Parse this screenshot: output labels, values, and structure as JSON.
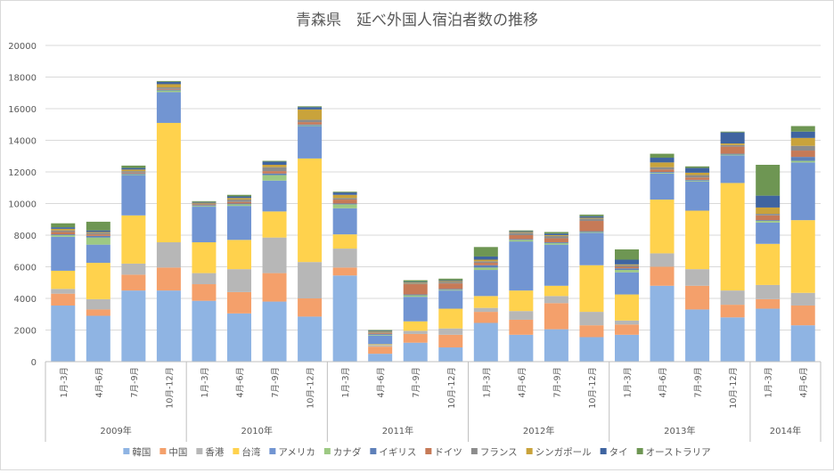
{
  "chart_data": {
    "type": "bar",
    "stacked": true,
    "title": "青森県　延べ外国人宿泊者数の推移",
    "ylim": [
      0,
      20000
    ],
    "yticks": [
      0,
      2000,
      4000,
      6000,
      8000,
      10000,
      12000,
      14000,
      16000,
      18000,
      20000
    ],
    "grid": true,
    "legend_position": "bottom",
    "categories": [
      "1月-3月",
      "4月-6月",
      "7月-9月",
      "10月-12月",
      "1月-3月",
      "4月-6月",
      "7月-9月",
      "10月-12月",
      "1月-3月",
      "4月-6月",
      "7月-9月",
      "10月-12月",
      "1月-3月",
      "4月-6月",
      "7月-9月",
      "10月-12月",
      "1月-3月",
      "4月-6月",
      "7月-9月",
      "10月-12月",
      "1月-3月",
      "4月-6月"
    ],
    "groups": [
      {
        "label": "2009年",
        "start": 0,
        "count": 4
      },
      {
        "label": "2010年",
        "start": 4,
        "count": 4
      },
      {
        "label": "2011年",
        "start": 8,
        "count": 4
      },
      {
        "label": "2012年",
        "start": 12,
        "count": 4
      },
      {
        "label": "2013年",
        "start": 16,
        "count": 4
      },
      {
        "label": "2014年",
        "start": 20,
        "count": 2
      }
    ],
    "series": [
      {
        "name": "韓国",
        "color": "#8FB4E3",
        "values": [
          3550,
          2900,
          4500,
          4500,
          3850,
          3050,
          3800,
          2850,
          5450,
          500,
          1200,
          900,
          2450,
          1700,
          2050,
          1550,
          1700,
          4800,
          3300,
          2800,
          3350,
          2300
        ]
      },
      {
        "name": "中国",
        "color": "#F4A06B",
        "values": [
          750,
          400,
          1000,
          1450,
          1050,
          1350,
          1800,
          1150,
          500,
          450,
          550,
          800,
          700,
          950,
          1650,
          750,
          650,
          1200,
          1500,
          800,
          600,
          1250
        ]
      },
      {
        "name": "香港",
        "color": "#B7B7B7",
        "values": [
          300,
          650,
          700,
          1600,
          700,
          1450,
          2250,
          2300,
          1200,
          100,
          200,
          400,
          250,
          550,
          450,
          850,
          250,
          850,
          1050,
          900,
          900,
          800
        ]
      },
      {
        "name": "台湾",
        "color": "#FFD24D",
        "values": [
          1150,
          2300,
          3050,
          7550,
          1950,
          1850,
          1650,
          6550,
          900,
          50,
          600,
          1250,
          750,
          1300,
          650,
          2950,
          1650,
          3400,
          3700,
          6800,
          2600,
          4600
        ]
      },
      {
        "name": "アメリカ",
        "color": "#7295D2",
        "values": [
          2150,
          1150,
          2550,
          1950,
          2250,
          2150,
          1950,
          2050,
          1650,
          550,
          1550,
          1150,
          1650,
          3100,
          2600,
          2050,
          1400,
          1650,
          1850,
          1750,
          1350,
          3650
        ]
      },
      {
        "name": "カナダ",
        "color": "#9DC983",
        "values": [
          100,
          450,
          50,
          100,
          50,
          100,
          350,
          50,
          250,
          50,
          100,
          50,
          150,
          100,
          100,
          50,
          150,
          50,
          50,
          50,
          100,
          100
        ]
      },
      {
        "name": "イギリス",
        "color": "#5E80B9",
        "values": [
          50,
          100,
          50,
          50,
          50,
          50,
          100,
          50,
          50,
          50,
          50,
          50,
          150,
          50,
          50,
          50,
          100,
          50,
          50,
          50,
          50,
          250
        ]
      },
      {
        "name": "ドイツ",
        "color": "#C67A57",
        "values": [
          150,
          100,
          50,
          50,
          50,
          100,
          150,
          150,
          250,
          50,
          650,
          350,
          150,
          250,
          250,
          650,
          100,
          150,
          150,
          450,
          300,
          400
        ]
      },
      {
        "name": "フランス",
        "color": "#8C8C8C",
        "values": [
          100,
          100,
          100,
          100,
          50,
          150,
          250,
          150,
          100,
          50,
          50,
          100,
          100,
          150,
          150,
          150,
          100,
          150,
          150,
          100,
          100,
          300
        ]
      },
      {
        "name": "シンガポール",
        "color": "#C9A33B",
        "values": [
          100,
          50,
          100,
          200,
          50,
          100,
          150,
          650,
          200,
          50,
          50,
          50,
          100,
          50,
          50,
          50,
          50,
          300,
          150,
          100,
          400,
          500
        ]
      },
      {
        "name": "タイ",
        "color": "#3F64A0",
        "values": [
          100,
          100,
          100,
          150,
          50,
          100,
          200,
          150,
          150,
          50,
          50,
          50,
          200,
          50,
          100,
          100,
          300,
          300,
          300,
          700,
          750,
          400
        ]
      },
      {
        "name": "オーストラリア",
        "color": "#6E9653",
        "values": [
          250,
          550,
          150,
          50,
          50,
          100,
          50,
          50,
          50,
          50,
          100,
          100,
          600,
          50,
          100,
          100,
          650,
          250,
          100,
          50,
          1950,
          350
        ]
      }
    ]
  }
}
